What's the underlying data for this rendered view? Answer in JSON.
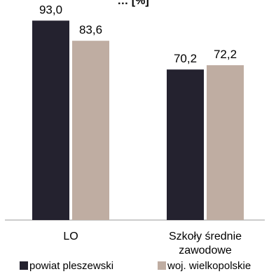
{
  "chart_data": {
    "type": "bar",
    "title": "… [%]",
    "categories": [
      "LO",
      "Szkoły średnie\nzawodowe"
    ],
    "series": [
      {
        "name": "powiat pleszewski",
        "values": [
          93.0,
          70.2
        ],
        "labels": [
          "93,0",
          "70,2"
        ],
        "color": "#24222f"
      },
      {
        "name": "woj. wielkopolskie",
        "values": [
          83.6,
          72.2
        ],
        "labels": [
          "83,6",
          "72,2"
        ],
        "color": "#bfada2"
      }
    ],
    "ylim": [
      0,
      100
    ],
    "grid": false,
    "legend": "bottom"
  }
}
